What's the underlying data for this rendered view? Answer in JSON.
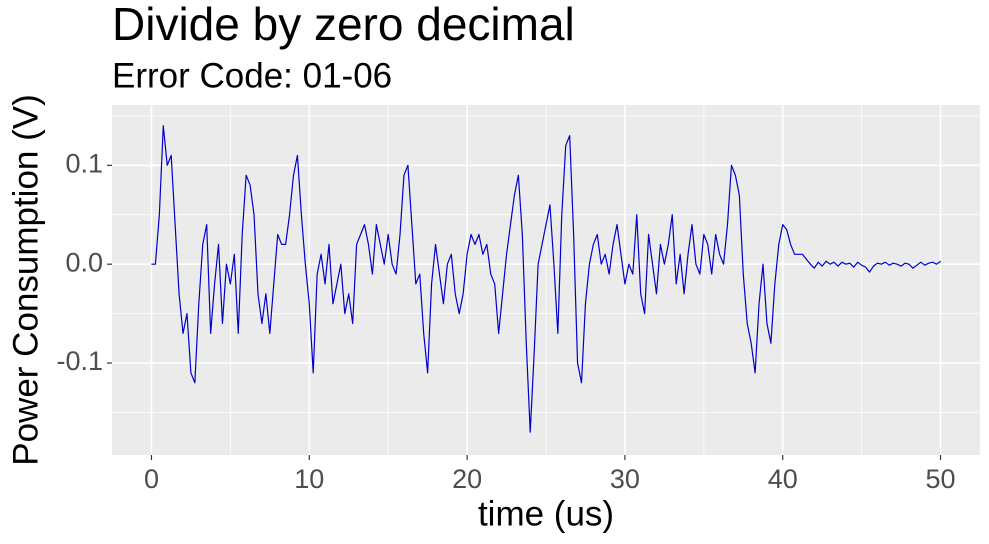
{
  "chart_data": {
    "type": "line",
    "title": "Divide by zero decimal",
    "subtitle": "Error Code: 01-06",
    "x_label": "time (us)",
    "y_label": "Power Consumption (V)",
    "xlim": [
      -2.5,
      52.5
    ],
    "ylim": [
      -0.193,
      0.161
    ],
    "xticks": [
      0,
      10,
      20,
      30,
      40,
      50
    ],
    "yticks": [
      -0.1,
      {
        "value": 0,
        "label": "0.0"
      },
      0.1
    ],
    "x_minor_ticks": [
      5,
      15,
      25,
      35,
      45
    ],
    "y_minor_ticks": [
      -0.15,
      -0.05,
      0.05,
      0.15
    ],
    "grid": true,
    "x": [
      0,
      0.25,
      0.5,
      0.75,
      1,
      1.25,
      1.5,
      1.75,
      2,
      2.25,
      2.5,
      2.75,
      3,
      3.25,
      3.5,
      3.75,
      4,
      4.25,
      4.5,
      4.75,
      5,
      5.25,
      5.5,
      5.75,
      6,
      6.25,
      6.5,
      6.75,
      7,
      7.25,
      7.5,
      7.75,
      8,
      8.25,
      8.5,
      8.75,
      9,
      9.25,
      9.5,
      9.75,
      10,
      10.25,
      10.5,
      10.75,
      11,
      11.25,
      11.5,
      11.75,
      12,
      12.25,
      12.5,
      12.75,
      13,
      13.25,
      13.5,
      13.75,
      14,
      14.25,
      14.5,
      14.75,
      15,
      15.25,
      15.5,
      15.75,
      16,
      16.25,
      16.5,
      16.75,
      17,
      17.25,
      17.5,
      17.75,
      18,
      18.25,
      18.5,
      18.75,
      19,
      19.25,
      19.5,
      19.75,
      20,
      20.25,
      20.5,
      20.75,
      21,
      21.25,
      21.5,
      21.75,
      22,
      22.25,
      22.5,
      22.75,
      23,
      23.25,
      23.5,
      23.75,
      24,
      24.25,
      24.5,
      24.75,
      25,
      25.25,
      25.5,
      25.75,
      26,
      26.25,
      26.5,
      26.75,
      27,
      27.25,
      27.5,
      27.75,
      28,
      28.25,
      28.5,
      28.75,
      29,
      29.25,
      29.5,
      29.75,
      30,
      30.25,
      30.5,
      30.75,
      31,
      31.25,
      31.5,
      31.75,
      32,
      32.25,
      32.5,
      32.75,
      33,
      33.25,
      33.5,
      33.75,
      34,
      34.25,
      34.5,
      34.75,
      35,
      35.25,
      35.5,
      35.75,
      36,
      36.25,
      36.5,
      36.75,
      37,
      37.25,
      37.5,
      37.75,
      38,
      38.25,
      38.5,
      38.75,
      39,
      39.25,
      39.5,
      39.75,
      40,
      40.25,
      40.5,
      40.75,
      41,
      41.25,
      41.5,
      41.75,
      42,
      42.25,
      42.5,
      42.75,
      43,
      43.25,
      43.5,
      43.75,
      44,
      44.25,
      44.5,
      44.75,
      45,
      45.25,
      45.5,
      45.75,
      46,
      46.25,
      46.5,
      46.75,
      47,
      47.25,
      47.5,
      47.75,
      48,
      48.25,
      48.5,
      48.75,
      49,
      49.25,
      49.5,
      49.75,
      50
    ],
    "series": [
      {
        "name": "power",
        "color": "#0000cc",
        "values": [
          0,
          0,
          0.05,
          0.14,
          0.1,
          0.11,
          0.04,
          -0.03,
          -0.07,
          -0.05,
          -0.11,
          -0.12,
          -0.04,
          0.02,
          0.04,
          -0.07,
          -0.02,
          0.02,
          -0.06,
          0,
          -0.02,
          0.01,
          -0.07,
          0.03,
          0.09,
          0.08,
          0.05,
          -0.03,
          -0.06,
          -0.03,
          -0.07,
          -0.02,
          0.03,
          0.02,
          0.02,
          0.05,
          0.09,
          0.11,
          0.05,
          0,
          -0.04,
          -0.11,
          -0.01,
          0.01,
          -0.02,
          0.02,
          -0.04,
          -0.02,
          0,
          -0.05,
          -0.03,
          -0.06,
          0.02,
          0.03,
          0.04,
          0.02,
          -0.01,
          0.04,
          0.02,
          0,
          0.03,
          0,
          -0.01,
          0.03,
          0.09,
          0.1,
          0.04,
          -0.02,
          -0.01,
          -0.07,
          -0.11,
          -0.02,
          0.02,
          -0.01,
          -0.04,
          0,
          0.01,
          -0.03,
          -0.05,
          -0.03,
          0.01,
          0.03,
          0.02,
          0.03,
          0.01,
          0.02,
          -0.01,
          -0.02,
          -0.07,
          -0.03,
          0.01,
          0.04,
          0.07,
          0.09,
          0.03,
          -0.08,
          -0.17,
          -0.09,
          0,
          0.02,
          0.04,
          0.06,
          0,
          -0.07,
          0.05,
          0.12,
          0.13,
          0.03,
          -0.1,
          -0.12,
          -0.04,
          0,
          0.02,
          0.03,
          0,
          0.01,
          -0.01,
          0.02,
          0.04,
          0.01,
          -0.02,
          0,
          -0.01,
          0.05,
          -0.03,
          -0.05,
          0.03,
          0,
          -0.03,
          0.02,
          0,
          0.02,
          0.05,
          -0.02,
          0.01,
          -0.03,
          0.01,
          0.04,
          0,
          -0.01,
          0.03,
          0.02,
          -0.01,
          0.03,
          0.01,
          0,
          0.04,
          0.1,
          0.09,
          0.07,
          -0.01,
          -0.06,
          -0.08,
          -0.11,
          -0.04,
          0,
          -0.06,
          -0.08,
          -0.02,
          0.02,
          0.04,
          0.035,
          0.02,
          0.01,
          0.01,
          0.01,
          0.005,
          0,
          -0.004,
          0.002,
          -0.002,
          0.003,
          0,
          0.002,
          -0.002,
          0.002,
          0,
          0.001,
          -0.003,
          0.002,
          -0.001,
          -0.003,
          -0.008,
          -0.002,
          0.001,
          0,
          0.002,
          -0.001,
          0.001,
          0,
          -0.002,
          0.001,
          0,
          -0.004,
          -0.001,
          0.002,
          -0.001,
          0.001,
          0.002,
          0,
          0.003
        ]
      }
    ]
  }
}
